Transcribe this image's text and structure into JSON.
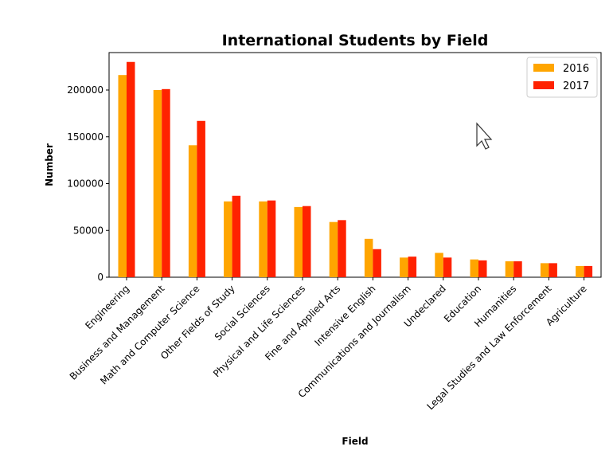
{
  "chart_data": {
    "type": "bar",
    "title": "International Students by Field",
    "xlabel": "Field",
    "ylabel": "Number",
    "ylim": [
      0,
      240000
    ],
    "yticks": [
      0,
      50000,
      100000,
      150000,
      200000
    ],
    "legend_position": "top-right",
    "grid": false,
    "categories": [
      "Engineering",
      "Business and Management",
      "Math and Computer Science",
      "Other Fields of Study",
      "Social Sciences",
      "Physical and Life Sciences",
      "Fine and Applied Arts",
      "Intensive English",
      "Communications and Journalism",
      "Undeclared",
      "Education",
      "Humanities",
      "Legal Studies and Law Enforcement",
      "Agriculture"
    ],
    "series": [
      {
        "name": "2016",
        "color": "#FFA500",
        "values": [
          216000,
          200000,
          141000,
          81000,
          81000,
          75000,
          59000,
          41000,
          21000,
          26000,
          19000,
          17000,
          15000,
          12000
        ]
      },
      {
        "name": "2017",
        "color": "#FF2200",
        "values": [
          230000,
          201000,
          167000,
          87000,
          82000,
          76000,
          61000,
          30000,
          22000,
          21000,
          18000,
          17000,
          15000,
          12000
        ]
      }
    ]
  }
}
